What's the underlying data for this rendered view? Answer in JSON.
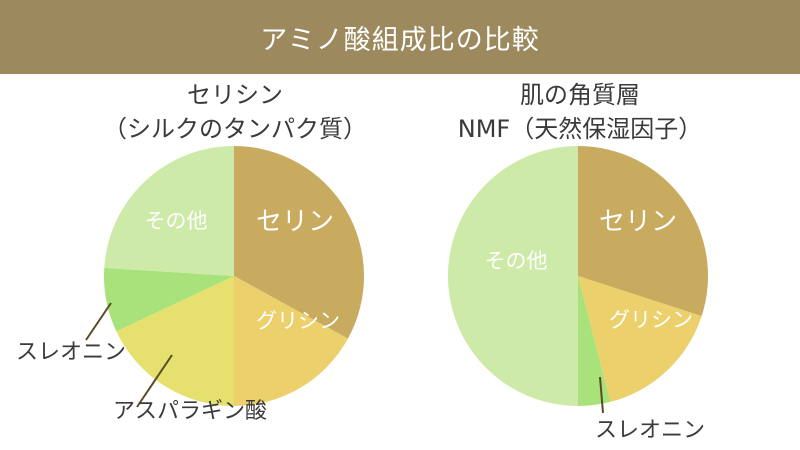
{
  "header": {
    "title": "アミノ酸組成比の比較"
  },
  "colors": {
    "header_bg": "#9c8a5e",
    "serine": "#c9ab5f",
    "glycine": "#ecd06c",
    "asparagine": "#e6e16e",
    "threonine": "#a9e27a",
    "other": "#cdeaa9",
    "label_dark": "#3a3a3a",
    "leader_line": "#5a4b25"
  },
  "chart_data": [
    {
      "type": "pie",
      "title": "セリシン\n（シルクのタンパク質）",
      "title_lines": [
        "セリシン",
        "（シルクのタンパク質）"
      ],
      "slices": [
        {
          "label": "セリン",
          "value": 33,
          "color": "#c9ab5f",
          "label_style": "inside-white"
        },
        {
          "label": "グリシン",
          "value": 17,
          "color": "#ecd06c",
          "label_style": "inside-white"
        },
        {
          "label": "アスパラギン酸",
          "value": 18,
          "color": "#e6e16e",
          "label_style": "outside"
        },
        {
          "label": "スレオニン",
          "value": 8,
          "color": "#a9e27a",
          "label_style": "outside"
        },
        {
          "label": "その他",
          "value": 24,
          "color": "#cdeaa9",
          "label_style": "inside-white"
        }
      ]
    },
    {
      "type": "pie",
      "title": "肌の角質層\nNMF（天然保湿因子）",
      "title_lines": [
        "肌の角質層",
        "NMF（天然保湿因子）"
      ],
      "slices": [
        {
          "label": "セリン",
          "value": 30,
          "color": "#c9ab5f",
          "label_style": "inside-white"
        },
        {
          "label": "グリシン",
          "value": 16,
          "color": "#ecd06c",
          "label_style": "inside-white"
        },
        {
          "label": "スレオニン",
          "value": 4,
          "color": "#a9e27a",
          "label_style": "outside"
        },
        {
          "label": "その他",
          "value": 50,
          "color": "#cdeaa9",
          "label_style": "inside-white"
        }
      ]
    }
  ]
}
